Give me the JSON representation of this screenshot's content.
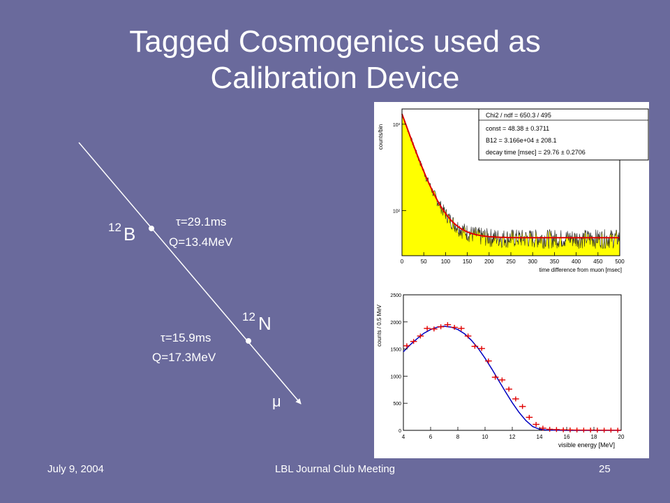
{
  "slide": {
    "title_line1": "Tagged Cosmogenics used as",
    "title_line2": "Calibration Device",
    "footer_date": "July 9, 2004",
    "footer_event": "LBL Journal Club Meeting",
    "page_number": "25"
  },
  "diagram": {
    "b12": {
      "mass": "12",
      "symbol": "B",
      "tau": "τ=29.1ms",
      "q": "Q=13.4MeV"
    },
    "n12": {
      "mass": "12",
      "symbol": "N",
      "tau": "τ=15.9ms",
      "q": "Q=17.3MeV"
    },
    "muon_label": "μ"
  },
  "colors": {
    "background": "#6a6a9c",
    "fill_yellow": "#ffff00",
    "fit_red": "#e00000",
    "fit_blue": "#0000c0"
  },
  "chart_data": [
    {
      "type": "area",
      "title": "",
      "xlabel": "time difference from muon [msec]",
      "ylabel": "counts/bin",
      "xlim": [
        0,
        500
      ],
      "ylim": [
        30,
        1500
      ],
      "log_y": true,
      "x_ticks": [
        0,
        50,
        100,
        150,
        200,
        250,
        300,
        350,
        400,
        450,
        500
      ],
      "y_ticks": [
        {
          "value": 100,
          "label": "10²"
        },
        {
          "value": 1000,
          "label": "10³"
        }
      ],
      "fit": {
        "const": 48.38,
        "b12": 31660,
        "decay_time_msec": 29.76
      },
      "stats_box": [
        "Chi2 / ndf = 650.3 / 495",
        "const    = 48.38 ± 0.3711",
        "B12      = 3.166e+04 ± 208.1",
        "decay time [msec] = 29.76 ± 0.2706"
      ]
    },
    {
      "type": "scatter",
      "title": "",
      "xlabel": "visible energy [MeV]",
      "ylabel": "counts / 0.5 MeV",
      "xlim": [
        4,
        20
      ],
      "ylim": [
        0,
        2500
      ],
      "x_ticks": [
        4,
        6,
        8,
        10,
        12,
        14,
        16,
        18,
        20
      ],
      "y_ticks": [
        0,
        500,
        1000,
        1500,
        2000,
        2500
      ],
      "series": [
        {
          "x": [
            4.25,
            4.75,
            5.25,
            5.75,
            6.25,
            6.75,
            7.25,
            7.75,
            8.25,
            8.75,
            9.25,
            9.75,
            10.25,
            10.75,
            11.25,
            11.75,
            12.25,
            12.75,
            13.25,
            13.75,
            14.25,
            14.75,
            15.25,
            15.75,
            16.25,
            16.75,
            17.25,
            17.75,
            18.25,
            18.75,
            19.25,
            19.75
          ],
          "values": [
            1560,
            1640,
            1740,
            1880,
            1870,
            1910,
            1950,
            1900,
            1880,
            1740,
            1550,
            1510,
            1280,
            980,
            930,
            760,
            580,
            440,
            240,
            110,
            40,
            20,
            15,
            10,
            8,
            6,
            5,
            5,
            4,
            3,
            3,
            2
          ]
        }
      ],
      "fit_curve": {
        "x": [
          4,
          4.5,
          5,
          5.5,
          6,
          6.5,
          7,
          7.5,
          8,
          8.5,
          9,
          9.5,
          10,
          10.5,
          11,
          11.5,
          12,
          12.5,
          13,
          13.5,
          14,
          14.5,
          15,
          16,
          17,
          18,
          19,
          20
        ],
        "values": [
          1450,
          1580,
          1690,
          1790,
          1860,
          1905,
          1920,
          1905,
          1860,
          1780,
          1660,
          1510,
          1330,
          1130,
          920,
          710,
          510,
          330,
          180,
          70,
          20,
          6,
          2,
          0,
          0,
          0,
          0,
          0
        ]
      }
    }
  ]
}
